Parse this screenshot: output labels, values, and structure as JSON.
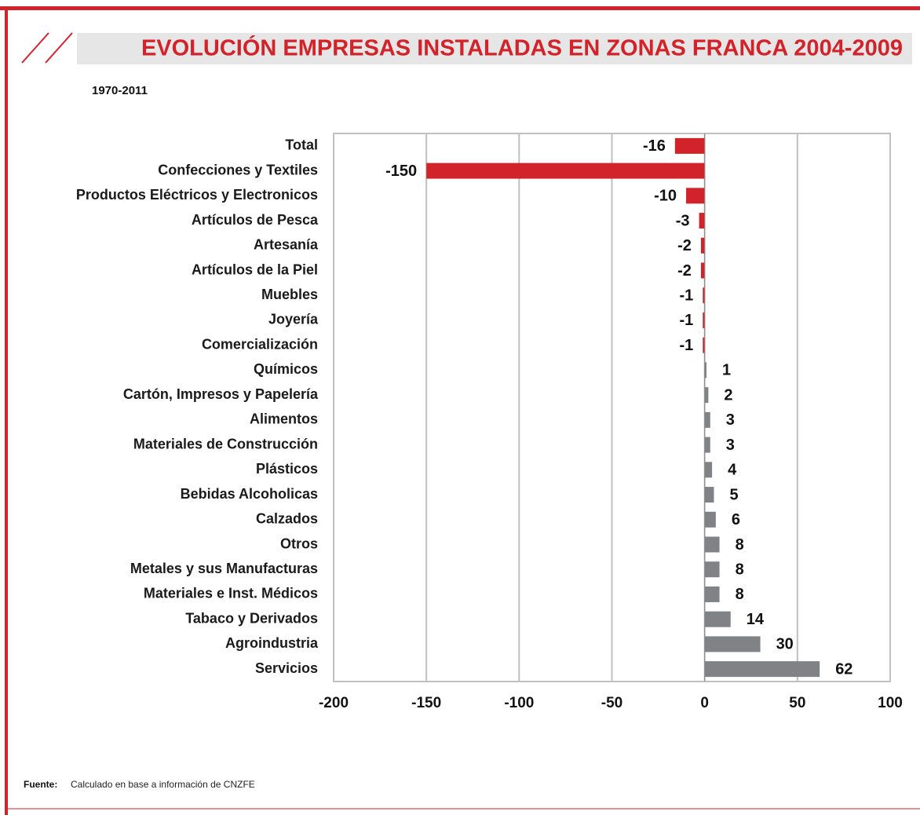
{
  "chart_data": {
    "type": "hbar",
    "title": "EVOLUCIÓN EMPRESAS INSTALADAS EN ZONAS FRANCA 2004-2009",
    "subtitle": "1970-2011",
    "categories": [
      "Total",
      "Confecciones y Textiles",
      "Productos Eléctricos y Electronicos",
      "Artículos de Pesca",
      "Artesanía",
      "Artículos de la Piel",
      "Muebles",
      "Joyería",
      "Comercialización",
      "Químicos",
      "Cartón, Impresos y Papelería",
      "Alimentos",
      "Materiales de Construcción",
      "Plásticos",
      "Bebidas Alcoholicas",
      "Calzados",
      "Otros",
      "Metales y sus Manufacturas",
      "Materiales e Inst. Médicos",
      "Tabaco y Derivados",
      "Agroindustria",
      "Servicios"
    ],
    "values": [
      -16,
      -150,
      -10,
      -3,
      -2,
      -2,
      -1,
      -1,
      -1,
      1,
      2,
      3,
      3,
      4,
      5,
      6,
      8,
      8,
      8,
      14,
      30,
      62
    ],
    "negative_color": "#d2232a",
    "positive_color": "#808285",
    "xlim": [
      -200,
      100
    ],
    "xticks": [
      -200,
      -150,
      -100,
      -50,
      0,
      50,
      100
    ],
    "grid": true,
    "source_label": "Fuente:",
    "source": "Calculado en base a información de CNZFE"
  }
}
